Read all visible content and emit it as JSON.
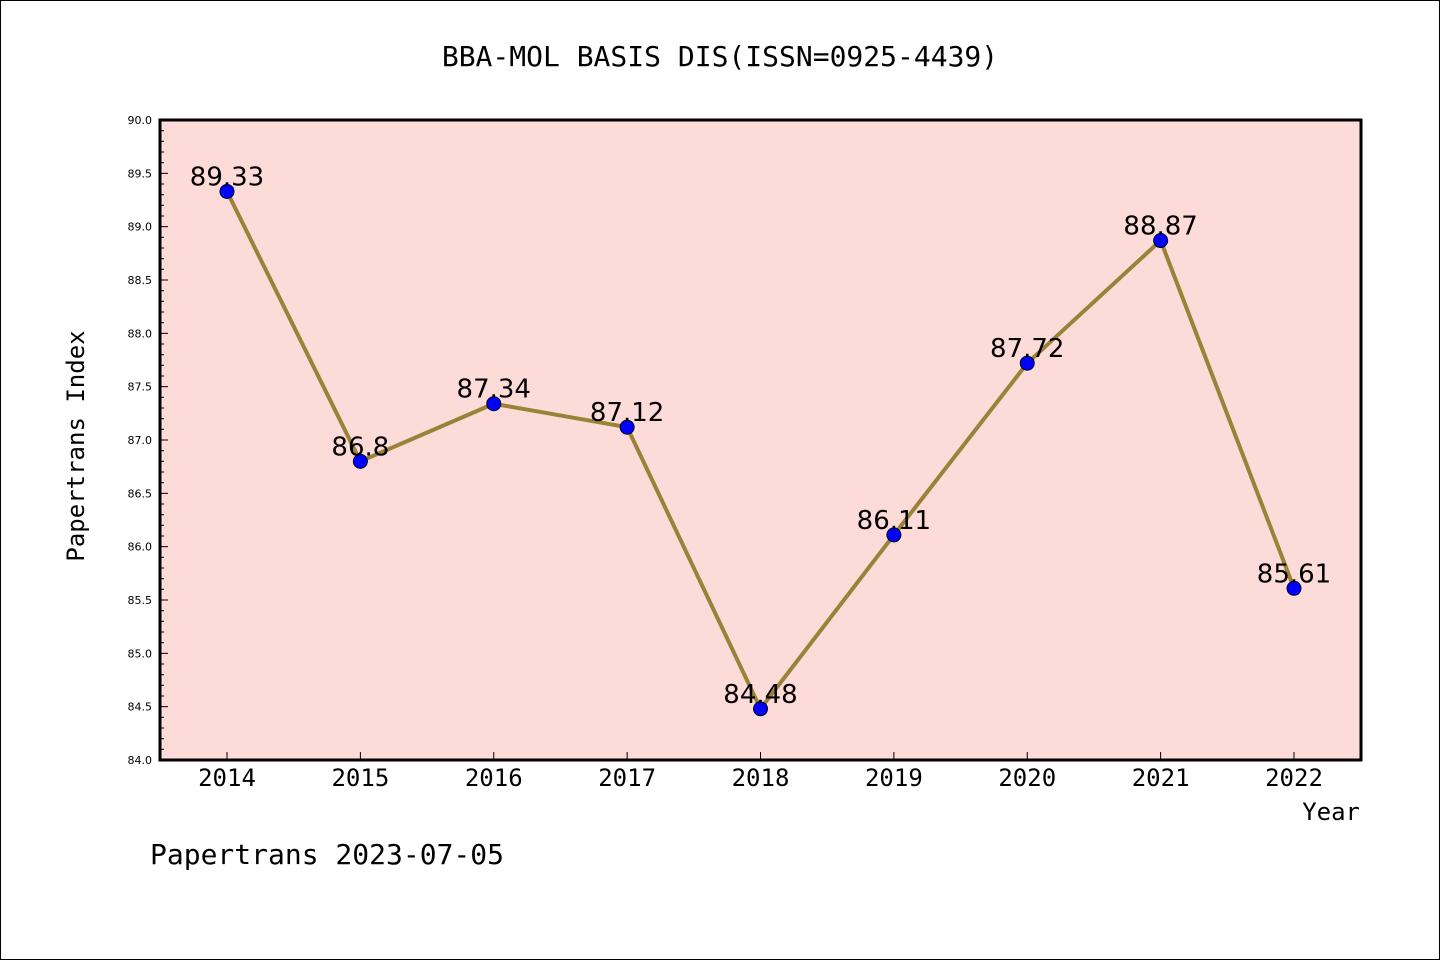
{
  "chart_data": {
    "type": "line",
    "title": "BBA-MOL BASIS DIS(ISSN=0925-4439)",
    "xlabel": "Year",
    "ylabel": "Papertrans Index",
    "categories": [
      "2014",
      "2015",
      "2016",
      "2017",
      "2018",
      "2019",
      "2020",
      "2021",
      "2022"
    ],
    "values": [
      89.33,
      86.8,
      87.34,
      87.12,
      84.48,
      86.11,
      87.72,
      88.87,
      85.61
    ],
    "data_labels": [
      "89.33",
      "86.8",
      "87.34",
      "87.12",
      "84.48",
      "86.11",
      "87.72",
      "88.87",
      "85.61"
    ],
    "ylim": [
      84.0,
      90.0
    ],
    "yticks": [
      "84.0",
      "84.5",
      "85.0",
      "85.5",
      "86.0",
      "86.5",
      "87.0",
      "87.5",
      "88.0",
      "88.5",
      "89.0",
      "89.5",
      "90.0"
    ],
    "grid": false,
    "colors": {
      "plot_background": "#fddbd8",
      "line": "#9a8238",
      "marker": "#0000ff"
    }
  },
  "footer": {
    "text": "Papertrans 2023-07-05"
  }
}
